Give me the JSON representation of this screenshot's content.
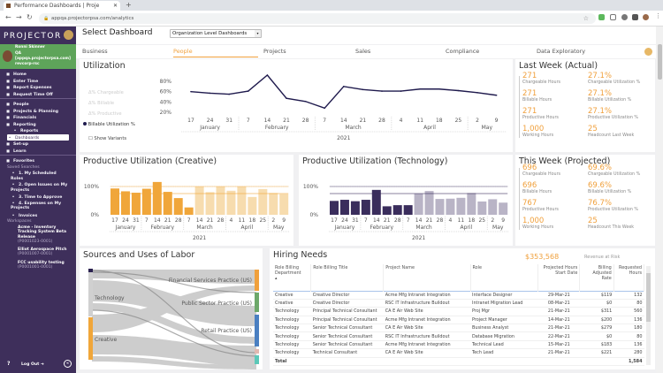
{
  "browser": {
    "tab_title": "Performance Dashboards | Proje",
    "url": "appqa.projectorpsa.com/analytics"
  },
  "sidebar": {
    "logo": "PROJECTOR",
    "user": {
      "name": "Ronni Skinner",
      "role": "QA",
      "account": "[appqa.projectorpsa.com]",
      "org": "revcorp-rsc"
    },
    "top_items": [
      {
        "label": "Home",
        "icon": "home-icon"
      },
      {
        "label": "Enter Time",
        "icon": "clock-icon"
      },
      {
        "label": "Report Expenses",
        "icon": "receipt-icon"
      },
      {
        "label": "Request Time Off",
        "icon": "plus-icon"
      }
    ],
    "nav_items": [
      {
        "label": "People",
        "icon": "people-icon"
      },
      {
        "label": "Projects & Planning",
        "icon": "list-icon"
      },
      {
        "label": "Financials",
        "icon": "money-icon"
      },
      {
        "label": "Reporting",
        "icon": "chart-icon"
      }
    ],
    "reporting_sub": [
      "Reports",
      "Dashboards"
    ],
    "nav_items2": [
      {
        "label": "Set-up",
        "icon": "gear-icon"
      },
      {
        "label": "Learn",
        "icon": "learn-icon"
      }
    ],
    "favorites": "Favorites",
    "saved_searches_label": "Saved Searches",
    "saved_searches": [
      "1. My Scheduled Roles",
      "2. Open Issues on My Projects",
      "3. Time to Approve",
      "4. Expenses on My Projects",
      "Invoices"
    ],
    "workspaces_label": "Workspaces",
    "workspaces": [
      {
        "name": "Acme - Inventory Tracking System Beta Release",
        "code": "(P0001023-0001)"
      },
      {
        "name": "Elliot Aerospace Pitch",
        "code": "(P0001007-0001)"
      },
      {
        "name": "FCC usability testing",
        "code": "(P0001001-0001)"
      }
    ],
    "logout": "Log Out"
  },
  "header": {
    "title": "Select Dashboard",
    "dashboard_select": "Organization Level Dashboards"
  },
  "tabs": [
    "Business",
    "People",
    "Projects",
    "Sales",
    "Compliance",
    "Data Exploratory"
  ],
  "active_tab": "People",
  "colors": {
    "accent": "#f0a03c",
    "sidebar": "#3e2f5b",
    "user_bar": "#5ea45a",
    "line": "#1f1a4d",
    "creative": "#f0a63a",
    "creative_proj": "#f7dcae",
    "tech": "#3a2d5c",
    "tech_proj": "#b9b4c6"
  },
  "chart_data": [
    {
      "type": "line",
      "title": "Utilization",
      "legend": [
        "Δ% Chargeable",
        "Δ% Billable",
        "Δ% Productive",
        "Billable Utilization %"
      ],
      "show_variants": "Show Variants",
      "x": [
        "17",
        "24",
        "31",
        "7",
        "14",
        "21",
        "28",
        "7",
        "14",
        "21",
        "28",
        "4",
        "11",
        "18",
        "25",
        "2",
        "9"
      ],
      "months": [
        "January",
        "February",
        "March",
        "April",
        "May"
      ],
      "year": "2021",
      "yticks": [
        "20%",
        "40%",
        "60%",
        "80%"
      ],
      "series": [
        {
          "name": "Billable Utilization %",
          "values": [
            60,
            57,
            55,
            61,
            92,
            47,
            41,
            28,
            70,
            64,
            61,
            61,
            65,
            65,
            62,
            58,
            53
          ]
        }
      ]
    },
    {
      "type": "bar",
      "title": "Productive Utilization (Creative)",
      "x": [
        "17",
        "24",
        "31",
        "7",
        "14",
        "21",
        "28",
        "7",
        "14",
        "21",
        "28",
        "4",
        "11",
        "18",
        "25",
        "2",
        "9"
      ],
      "months": [
        "January",
        "February",
        "March",
        "April",
        "May"
      ],
      "year": "2021",
      "yticks": [
        "0%",
        "100%"
      ],
      "ylim": [
        0,
        120
      ],
      "values": [
        93,
        83,
        78,
        92,
        116,
        81,
        59,
        26,
        100,
        80,
        100,
        85,
        100,
        63,
        91,
        77,
        73
      ],
      "projected_from_index": 8,
      "reference_lines": [
        100,
        75
      ]
    },
    {
      "type": "bar",
      "title": "Productive Utilization (Technology)",
      "x": [
        "17",
        "24",
        "31",
        "7",
        "14",
        "21",
        "28",
        "7",
        "14",
        "21",
        "28",
        "4",
        "11",
        "18",
        "25",
        "2",
        "9"
      ],
      "months": [
        "January",
        "February",
        "March",
        "April",
        "May"
      ],
      "year": "2021",
      "yticks": [
        "0%",
        "100%"
      ],
      "ylim": [
        0,
        120
      ],
      "values": [
        49,
        53,
        48,
        53,
        88,
        30,
        34,
        34,
        75,
        84,
        56,
        57,
        60,
        77,
        47,
        55,
        43
      ],
      "projected_from_index": 8,
      "reference_lines": [
        100,
        75
      ]
    }
  ],
  "last_week": {
    "title": "Last Week (Actual)",
    "kpis": [
      {
        "value": "271",
        "label": "Chargeable Hours"
      },
      {
        "value": "27.1%",
        "label": "Chargeable Utilization %"
      },
      {
        "value": "271",
        "label": "Billable Hours"
      },
      {
        "value": "27.1%",
        "label": "Billable Utilization %"
      },
      {
        "value": "271",
        "label": "Productive Hours"
      },
      {
        "value": "27.1%",
        "label": "Productive Utilization %"
      },
      {
        "value": "1,000",
        "label": "Working Hours"
      },
      {
        "value": "25",
        "label": "Headcount Last Week"
      }
    ]
  },
  "this_week": {
    "title": "This Week (Projected)",
    "kpis": [
      {
        "value": "696",
        "label": "Chargeable Hours"
      },
      {
        "value": "69.6%",
        "label": "Chargeable Utilization %"
      },
      {
        "value": "696",
        "label": "Billable Hours"
      },
      {
        "value": "69.6%",
        "label": "Billable Utilization %"
      },
      {
        "value": "767",
        "label": "Productive Hours"
      },
      {
        "value": "76.7%",
        "label": "Productive Utilization %"
      },
      {
        "value": "1,000",
        "label": "Working Hours"
      },
      {
        "value": "25",
        "label": "Headcount This Week"
      }
    ]
  },
  "sankey": {
    "title": "Sources and Uses of Labor",
    "sources": [
      "Technology",
      "Creative"
    ],
    "targets": [
      "Financial Services Practice (US)",
      "Public Sector Practice (US)",
      "Retail Practice (US)"
    ]
  },
  "hiring": {
    "title": "Hiring Needs",
    "revenue_at_risk": "$353,568",
    "revenue_label": "Revenue at Risk",
    "columns": [
      "Role Billing Department",
      "Role Billing Title",
      "Project Name",
      "Role",
      "Projected Hours Start Date",
      "Billing Adjusted Rate",
      "Requested Hours"
    ],
    "rows": [
      [
        "Creative",
        "Creative Director",
        "Acme Mfg Intranet Integration",
        "Interface Designer",
        "29-Mar-21",
        "$119",
        "132"
      ],
      [
        "Creative",
        "Creative Director",
        "RSC IT Infrastructure Buildout",
        "Intranet Migration Lead",
        "08-Mar-21",
        "$0",
        "80"
      ],
      [
        "Technology",
        "Principal Technical Consultant",
        "CA E Air Web Site",
        "Proj Mgr",
        "21-Mar-21",
        "$311",
        "560"
      ],
      [
        "Technology",
        "Principal Technical Consultant",
        "Acme Mfg Intranet Integration",
        "Project Manager",
        "14-Mar-21",
        "$200",
        "136"
      ],
      [
        "Technology",
        "Senior Technical Consultant",
        "CA E Air Web Site",
        "Business Analyst",
        "21-Mar-21",
        "$279",
        "180"
      ],
      [
        "Technology",
        "Senior Technical Consultant",
        "RSC IT Infrastructure Buildout",
        "Database Migration",
        "22-Mar-21",
        "$0",
        "80"
      ],
      [
        "Technology",
        "Senior Technical Consultant",
        "Acme Mfg Intranet Integration",
        "Technical Lead",
        "15-Mar-21",
        "$183",
        "136"
      ],
      [
        "Technology",
        "Technical Consultant",
        "CA E Air Web Site",
        "Tech Lead",
        "21-Mar-21",
        "$221",
        "280"
      ]
    ],
    "total_label": "Total",
    "total_hours": "1,584"
  }
}
